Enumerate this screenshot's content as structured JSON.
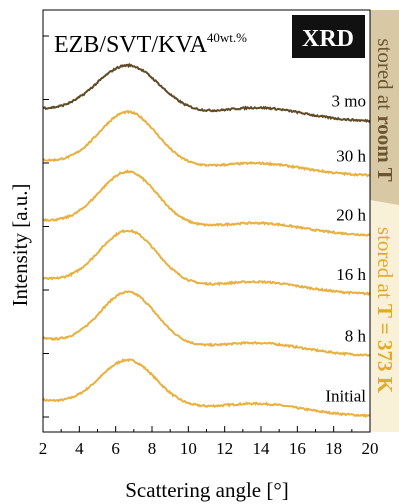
{
  "chart_data": {
    "type": "line",
    "title_main": "EZB/SVT/KVA",
    "title_sup": "40wt.%",
    "badge": "XRD",
    "xlabel": "Scattering angle [°]",
    "ylabel": "Intensity [a.u.]",
    "xlim": [
      2,
      20
    ],
    "x_ticks": [
      2,
      4,
      6,
      8,
      10,
      12,
      14,
      16,
      18,
      20
    ],
    "grid": false,
    "colors": {
      "room": "#5e4a24",
      "hot": "#e8b040",
      "room_band": "#d8c9a4",
      "hot_band": "#f8f1d8",
      "room_text": "#6b5530",
      "hot_text": "#e3a92a",
      "badge_bg": "#111111",
      "badge_fg": "#ffffff"
    },
    "side_labels": [
      {
        "prefix": "stored at ",
        "bold": "room T",
        "group": "room"
      },
      {
        "prefix": "stored at ",
        "bold": "T = 373 K",
        "group": "hot"
      }
    ],
    "series": [
      {
        "name": "Initial",
        "group": "hot",
        "amp": 0.48,
        "width": 1.55,
        "base_left": 0.5,
        "base_right": 0.03,
        "base_offset": 0.03,
        "hump": 0.09
      },
      {
        "name": "8 h",
        "group": "hot",
        "amp": 0.55,
        "width": 1.55,
        "base_left": 0.58,
        "base_right": 0.08,
        "base_offset": 0.63,
        "hump": 0.09
      },
      {
        "name": "16 h",
        "group": "hot",
        "amp": 0.56,
        "width": 1.6,
        "base_left": 0.55,
        "base_right": 0.1,
        "base_offset": 1.25,
        "hump": 0.09
      },
      {
        "name": "20 h",
        "group": "hot",
        "amp": 0.56,
        "width": 1.6,
        "base_left": 0.55,
        "base_right": 0.1,
        "base_offset": 1.85,
        "hump": 0.09
      },
      {
        "name": "30 h",
        "group": "hot",
        "amp": 0.56,
        "width": 1.6,
        "base_left": 0.55,
        "base_right": 0.1,
        "base_offset": 2.46,
        "hump": 0.09
      },
      {
        "name": "3 mo",
        "group": "room",
        "amp": 0.5,
        "width": 1.75,
        "base_left": 0.5,
        "base_right": 0.14,
        "base_offset": 3.0,
        "hump": 0.11
      }
    ]
  }
}
